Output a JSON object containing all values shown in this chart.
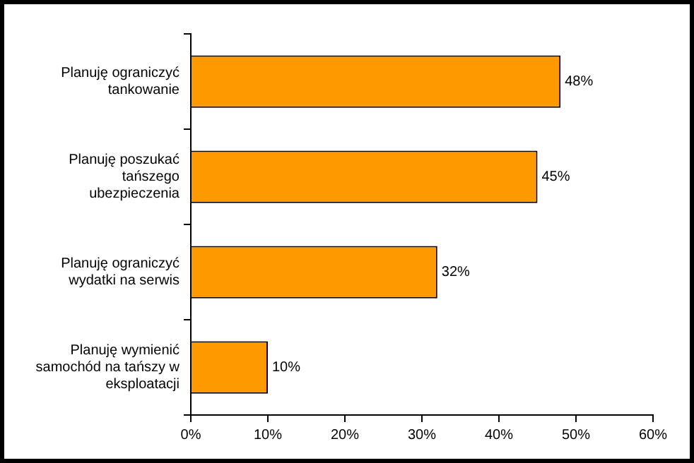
{
  "chart_data": {
    "type": "bar",
    "orientation": "horizontal",
    "categories": [
      "Planuję ograniczyć tankowanie",
      "Planuję poszukać tańszego ubezpieczenia",
      "Planuję ograniczyć wydatki na serwis",
      "Planuję wymienić samochód na tańszy w eksploatacji"
    ],
    "values": [
      48,
      45,
      32,
      10
    ],
    "color": "#ff9900",
    "value_labels": [
      "48%",
      "45%",
      "32%",
      "10%"
    ],
    "xlim": [
      0,
      60
    ],
    "xticks": [
      {
        "value": 0,
        "label": "0%"
      },
      {
        "value": 10,
        "label": "10%"
      },
      {
        "value": 20,
        "label": "20%"
      },
      {
        "value": 30,
        "label": "30%"
      },
      {
        "value": 40,
        "label": "40%"
      },
      {
        "value": 50,
        "label": "50%"
      },
      {
        "value": 60,
        "label": "60%"
      }
    ],
    "grid": false,
    "legend": false
  }
}
